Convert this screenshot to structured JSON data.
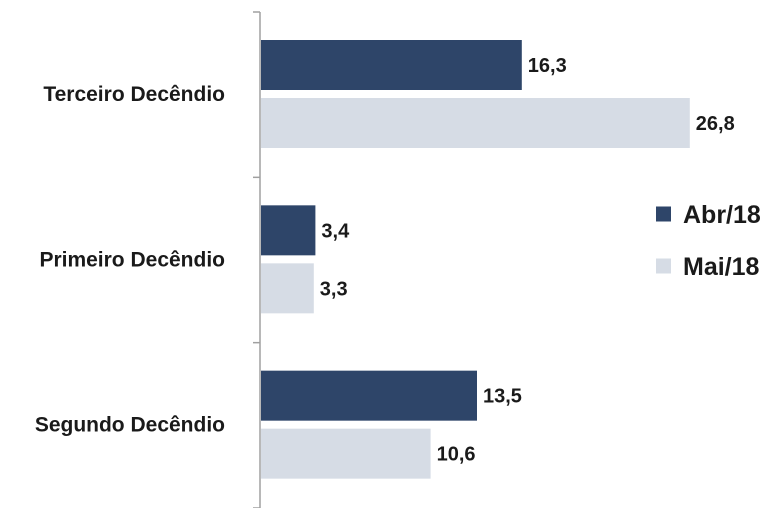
{
  "chart_data": {
    "type": "bar",
    "orientation": "horizontal",
    "categories": [
      "Terceiro Decêndio",
      "Primeiro Decêndio",
      "Segundo Decêndio"
    ],
    "series": [
      {
        "name": "Abr/18",
        "values": [
          16.3,
          3.4,
          13.5
        ],
        "labels": [
          "16,3",
          "3,4",
          "13,5"
        ],
        "color": "#2e4569"
      },
      {
        "name": "Mai/18",
        "values": [
          26.8,
          3.3,
          10.6
        ],
        "labels": [
          "26,8",
          "3,3",
          "10,6"
        ],
        "color": "#d6dce5"
      }
    ],
    "xlim": [
      0,
      30
    ],
    "grid": false,
    "legend": "right"
  }
}
